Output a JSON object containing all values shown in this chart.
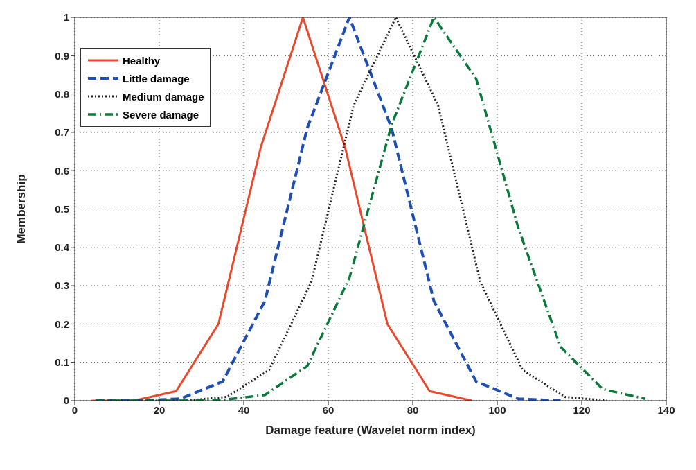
{
  "chart_data": {
    "type": "line",
    "xlabel": "Damage feature (Wavelet norm index)",
    "ylabel": "Membership",
    "xlim": [
      0,
      140
    ],
    "xticks": [
      0,
      20,
      40,
      60,
      80,
      100,
      120,
      140
    ],
    "ylim": [
      0,
      1
    ],
    "yticks": [
      0,
      0.1,
      0.2,
      0.3,
      0.4,
      0.5,
      0.6,
      0.7,
      0.8,
      0.9,
      1
    ],
    "grid": true,
    "legend": "top left",
    "marker": "none",
    "series": [
      {
        "name": "Healthy",
        "color": "#e8492c",
        "line_style": "solid",
        "x": [
          4,
          14,
          24,
          34,
          44,
          54,
          64,
          74,
          84,
          94
        ],
        "values": [
          0,
          0,
          0.025,
          0.2,
          0.66,
          1,
          0.66,
          0.2,
          0.025,
          0
        ]
      },
      {
        "name": "Little damage",
        "color": "#1f4fb4",
        "line_style": "dashed",
        "x": [
          5,
          15,
          25,
          35,
          45,
          55,
          65,
          75,
          85,
          95,
          105,
          115
        ],
        "values": [
          0,
          0,
          0.005,
          0.05,
          0.26,
          0.71,
          1,
          0.71,
          0.26,
          0.05,
          0.005,
          0
        ]
      },
      {
        "name": "Medium damage",
        "color": "#222222",
        "line_style": "dotted",
        "x": [
          6,
          16,
          26,
          36,
          46,
          56,
          66,
          76,
          86,
          96,
          106,
          116,
          126
        ],
        "values": [
          0,
          0,
          0,
          0.01,
          0.08,
          0.31,
          0.77,
          1,
          0.77,
          0.31,
          0.08,
          0.01,
          0
        ]
      },
      {
        "name": "Severe damage",
        "color": "#0a7a3a",
        "line_style": "dashdot",
        "x": [
          5,
          15,
          25,
          35,
          45,
          55,
          65,
          75,
          85,
          95,
          105,
          115,
          125,
          135
        ],
        "values": [
          0,
          0,
          0,
          0.002,
          0.015,
          0.09,
          0.32,
          0.72,
          1,
          0.84,
          0.45,
          0.14,
          0.03,
          0.005
        ]
      }
    ]
  }
}
